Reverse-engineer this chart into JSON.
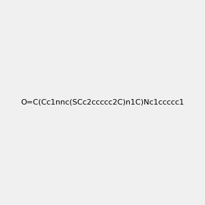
{
  "smiles": "O=C(Cc1nnc(SCc2ccccc2C)n1C)Nc1ccccc1",
  "title": "",
  "background_color": "#f0f0f0",
  "img_size": [
    300,
    300
  ]
}
